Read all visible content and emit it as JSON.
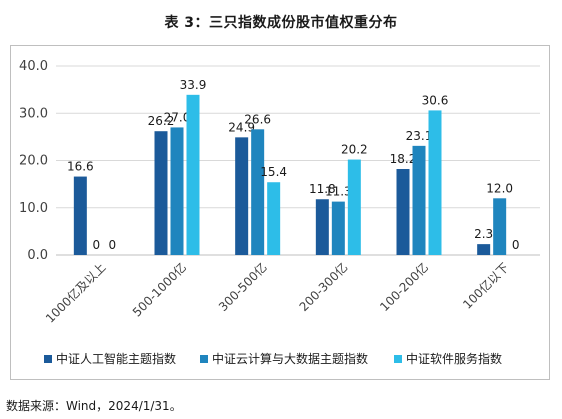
{
  "title": "表 3：三只指数成份股市值权重分布",
  "source": "数据来源：Wind，2024/1/31。",
  "colors": {
    "s1": "#1b5a9a",
    "s2": "#1f85be",
    "s3": "#2dbde8",
    "grid": "#d9d9d9",
    "axis": "#bfbfbf"
  },
  "chart_data": {
    "type": "bar",
    "title": "表 3：三只指数成份股市值权重分布",
    "xlabel": "",
    "ylabel": "",
    "ylim": [
      0,
      40
    ],
    "yticks": [
      "0.0",
      "10.0",
      "20.0",
      "30.0",
      "40.0"
    ],
    "grid": true,
    "legend": "bottom",
    "categories": [
      "1000亿及以上",
      "500-1000亿",
      "300-500亿",
      "200-300亿",
      "100-200亿",
      "100亿以下"
    ],
    "series": [
      {
        "name": "中证人工智能主题指数",
        "values": [
          16.6,
          26.2,
          24.9,
          11.8,
          18.2,
          2.3
        ],
        "labels": [
          "16.6",
          "26.2",
          "24.9",
          "11.8",
          "18.2",
          "2.3"
        ]
      },
      {
        "name": "中证云计算与大数据主题指数",
        "values": [
          0,
          27.0,
          26.6,
          11.3,
          23.1,
          12.0
        ],
        "labels": [
          "0",
          "27.0",
          "26.6",
          "11.3",
          "23.1",
          "12.0"
        ]
      },
      {
        "name": "中证软件服务指数",
        "values": [
          0,
          33.9,
          15.4,
          20.2,
          30.6,
          0
        ],
        "labels": [
          "0",
          "33.9",
          "15.4",
          "20.2",
          "30.6",
          "0"
        ]
      }
    ]
  }
}
